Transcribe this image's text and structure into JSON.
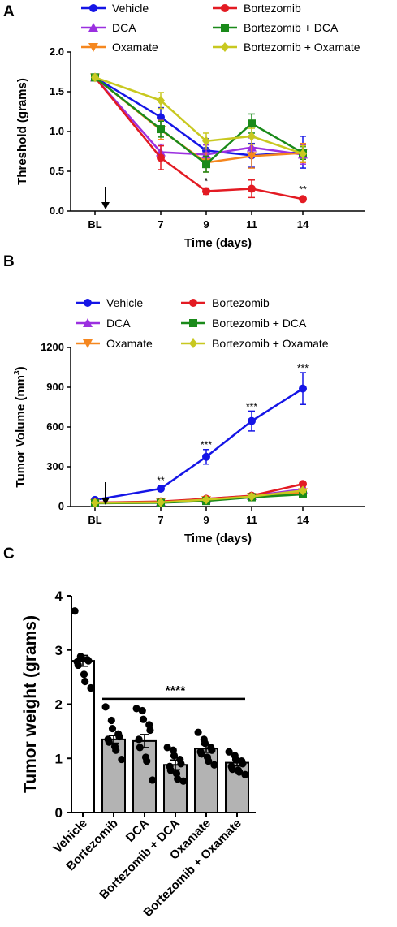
{
  "panel_labels": [
    "A",
    "B",
    "C"
  ],
  "chart_data": [
    {
      "id": "A",
      "type": "line",
      "xlabel": "Time (days)",
      "ylabel": "Threshold (grams)",
      "x": [
        "BL",
        "7",
        "9",
        "11",
        "14"
      ],
      "ylim": [
        0,
        2.0
      ],
      "yticks": [
        "0.0",
        "0.5",
        "1.0",
        "1.5",
        "2.0"
      ],
      "grid": false,
      "legend": "top, 2 columns",
      "arrow_between": [
        "BL",
        "7"
      ],
      "series": [
        {
          "name": "Vehicle",
          "color": "#1515e6",
          "marker": "circle",
          "values": [
            1.68,
            1.18,
            0.76,
            0.7,
            0.74
          ],
          "errors": [
            0.03,
            0.12,
            0.15,
            0.15,
            0.2
          ]
        },
        {
          "name": "DCA",
          "color": "#9b30e0",
          "marker": "triangle-up",
          "values": [
            1.68,
            0.74,
            0.71,
            0.8,
            0.71
          ],
          "errors": [
            0.03,
            0.1,
            0.12,
            0.12,
            0.12
          ]
        },
        {
          "name": "Oxamate",
          "color": "#f5871f",
          "marker": "triangle-down",
          "values": [
            1.68,
            1.02,
            0.61,
            0.69,
            0.73
          ],
          "errors": [
            0.03,
            0.12,
            0.12,
            0.15,
            0.12
          ]
        },
        {
          "name": "Bortezomib",
          "color": "#e31b23",
          "marker": "circle",
          "values": [
            1.68,
            0.67,
            0.25,
            0.28,
            0.15
          ],
          "errors": [
            0.03,
            0.15,
            0.04,
            0.11,
            0.02
          ]
        },
        {
          "name": "Bortezomib + DCA",
          "color": "#1a8a1a",
          "marker": "square",
          "values": [
            1.68,
            1.03,
            0.59,
            1.1,
            0.73
          ],
          "errors": [
            0.03,
            0.1,
            0.1,
            0.12,
            0.08
          ]
        },
        {
          "name": "Bortezomib + Oxamate",
          "color": "#c8c820",
          "marker": "diamond",
          "values": [
            1.68,
            1.39,
            0.88,
            0.94,
            0.72
          ],
          "errors": [
            0.03,
            0.1,
            0.1,
            0.1,
            0.1
          ]
        }
      ],
      "annotations": [
        {
          "x": "9",
          "text": "*",
          "above": 0.29
        },
        {
          "x": "14",
          "text": "**",
          "above": 0.17
        }
      ]
    },
    {
      "id": "B",
      "type": "line",
      "xlabel": "Time (days)",
      "ylabel_main": "Tumor Volume (mm",
      "ylabel_sup": "3",
      "ylabel_end": ")",
      "x": [
        "BL",
        "7",
        "9",
        "11",
        "14"
      ],
      "ylim": [
        0,
        1200
      ],
      "yticks": [
        "0",
        "300",
        "600",
        "900",
        "1200"
      ],
      "grid": false,
      "legend": "top, 2 columns",
      "arrow_between": [
        "BL",
        "7"
      ],
      "series": [
        {
          "name": "Vehicle",
          "color": "#1515e6",
          "marker": "circle",
          "values": [
            50,
            135,
            375,
            645,
            890
          ],
          "errors": [
            10,
            15,
            55,
            75,
            120
          ]
        },
        {
          "name": "DCA",
          "color": "#9b30e0",
          "marker": "triangle-up",
          "values": [
            30,
            35,
            58,
            80,
            130
          ],
          "errors": [
            5,
            5,
            8,
            10,
            12
          ]
        },
        {
          "name": "Oxamate",
          "color": "#f5871f",
          "marker": "triangle-down",
          "values": [
            25,
            30,
            48,
            72,
            108
          ],
          "errors": [
            5,
            5,
            8,
            10,
            12
          ]
        },
        {
          "name": "Bortezomib",
          "color": "#e31b23",
          "marker": "circle",
          "values": [
            30,
            38,
            58,
            82,
            170
          ],
          "errors": [
            5,
            5,
            8,
            10,
            12
          ]
        },
        {
          "name": "Bortezomib + DCA",
          "color": "#1a8a1a",
          "marker": "square",
          "values": [
            25,
            28,
            42,
            70,
            92
          ],
          "errors": [
            5,
            5,
            8,
            10,
            12
          ]
        },
        {
          "name": "Bortezomib + Oxamate",
          "color": "#c8c820",
          "marker": "diamond",
          "values": [
            28,
            32,
            52,
            76,
            120
          ],
          "errors": [
            5,
            5,
            8,
            10,
            12
          ]
        }
      ],
      "annotations": [
        {
          "x": "7",
          "text": "**",
          "y": 170
        },
        {
          "x": "9",
          "text": "***",
          "y": 440
        },
        {
          "x": "11",
          "text": "***",
          "y": 730
        },
        {
          "x": "14",
          "text": "***",
          "y": 1020
        }
      ]
    },
    {
      "id": "C",
      "type": "bar",
      "ylabel": "Tumor weight (grams)",
      "categories": [
        "Vehicle",
        "Bortezomib",
        "DCA",
        "Bortezomib + DCA",
        "Oxamate",
        "Bortezomib + Oxamate"
      ],
      "values": [
        2.8,
        1.35,
        1.32,
        0.88,
        1.18,
        0.92
      ],
      "errors": [
        0.1,
        0.07,
        0.12,
        0.09,
        0.07,
        0.06
      ],
      "bar_colors": [
        "#ffffff",
        "#b3b3b3",
        "#b3b3b3",
        "#b3b3b3",
        "#b3b3b3",
        "#b3b3b3"
      ],
      "ylim": [
        0,
        4
      ],
      "yticks": [
        "0",
        "1",
        "2",
        "3",
        "4"
      ],
      "points": [
        [
          3.72,
          2.88,
          2.85,
          2.82,
          2.8,
          2.78,
          2.72,
          2.55,
          2.42,
          2.3
        ],
        [
          1.95,
          1.7,
          1.55,
          1.45,
          1.4,
          1.35,
          1.3,
          1.22,
          1.15,
          0.98
        ],
        [
          1.92,
          1.88,
          1.72,
          1.62,
          1.52,
          1.35,
          1.2,
          1.02,
          0.95,
          0.6
        ],
        [
          1.2,
          1.15,
          1.05,
          0.98,
          0.9,
          0.85,
          0.78,
          0.72,
          0.62,
          0.58
        ],
        [
          1.48,
          1.35,
          1.28,
          1.2,
          1.15,
          1.12,
          1.08,
          1.02,
          0.95,
          0.88
        ],
        [
          1.12,
          1.05,
          0.98,
          0.95,
          0.9,
          0.85,
          0.8,
          0.78,
          0.75,
          0.7
        ]
      ],
      "significance": {
        "text": "****",
        "from": "Bortezomib",
        "to": "Bortezomib + Oxamate",
        "y": 2.1
      }
    }
  ]
}
